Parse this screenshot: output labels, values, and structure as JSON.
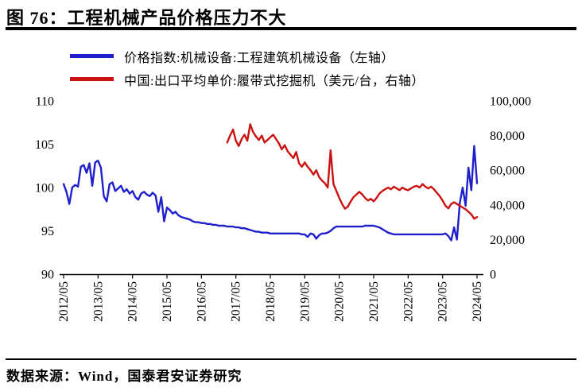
{
  "figure": {
    "title": "图 76：工程机械产品价格压力不大",
    "source": "数据来源：Wind，国泰君安证券研究"
  },
  "legend": [
    {
      "label": "价格指数:机械设备:工程建筑机械设备（左轴）",
      "color": "#1f1fcb"
    },
    {
      "label": "中国:出口平均单价:履带式挖掘机（美元/台，右轴）",
      "color": "#cc1111"
    }
  ],
  "chart_data": {
    "type": "line",
    "title": "工程机械产品价格压力不大",
    "x_frequency": "monthly",
    "x_start": "2012/05",
    "x_end": "2024/05",
    "x_tick_labels": [
      "2012/05",
      "2013/05",
      "2014/05",
      "2015/05",
      "2016/05",
      "2017/05",
      "2018/05",
      "2019/05",
      "2020/05",
      "2021/05",
      "2022/05",
      "2023/05",
      "2024/05"
    ],
    "left_axis": {
      "min": 90,
      "max": 110,
      "ticks": [
        110,
        105,
        100,
        95,
        90
      ]
    },
    "right_axis": {
      "min": 0,
      "max": 100000,
      "tick_labels": [
        "100,000",
        "80,000",
        "60,000",
        "40,000",
        "20,000",
        "0"
      ]
    },
    "grid": false,
    "legend_position": "top-left",
    "series": [
      {
        "id": "price-index",
        "name": "价格指数:机械设备:工程建筑机械设备（左轴）",
        "axis": "left",
        "color": "#1f1fcb",
        "start_index": 0,
        "values": [
          100.4,
          99.5,
          98.1,
          100.0,
          100.3,
          100.1,
          102.4,
          102.6,
          101.7,
          102.8,
          100.2,
          102.9,
          103.1,
          102.3,
          99.0,
          98.4,
          100.4,
          100.6,
          99.6,
          99.9,
          100.2,
          99.5,
          99.8,
          99.3,
          99.6,
          98.9,
          98.6,
          99.3,
          99.5,
          99.2,
          99.0,
          99.4,
          99.1,
          97.2,
          98.9,
          96.1,
          97.7,
          97.4,
          97.0,
          97.2,
          96.8,
          96.6,
          96.5,
          96.4,
          96.3,
          96.1,
          96.0,
          96.0,
          95.9,
          95.9,
          95.8,
          95.8,
          95.7,
          95.7,
          95.6,
          95.6,
          95.6,
          95.5,
          95.5,
          95.5,
          95.4,
          95.4,
          95.3,
          95.3,
          95.2,
          95.1,
          95.0,
          94.9,
          94.9,
          94.8,
          94.8,
          94.8,
          94.7,
          94.7,
          94.7,
          94.7,
          94.7,
          94.7,
          94.7,
          94.7,
          94.7,
          94.7,
          94.7,
          94.6,
          94.6,
          94.3,
          94.7,
          94.6,
          94.1,
          94.5,
          94.7,
          94.7,
          94.8,
          95.0,
          95.3,
          95.5,
          95.5,
          95.5,
          95.5,
          95.5,
          95.5,
          95.5,
          95.5,
          95.5,
          95.5,
          95.6,
          95.6,
          95.6,
          95.6,
          95.5,
          95.4,
          95.2,
          95.0,
          94.8,
          94.7,
          94.6,
          94.6,
          94.6,
          94.6,
          94.6,
          94.6,
          94.6,
          94.6,
          94.6,
          94.6,
          94.6,
          94.6,
          94.6,
          94.6,
          94.6,
          94.6,
          94.6,
          94.6,
          94.7,
          94.4,
          93.9,
          95.4,
          94.0,
          98.2,
          100.0,
          97.9,
          102.3,
          99.7,
          104.8,
          100.5
        ]
      },
      {
        "id": "export-unit-price",
        "name": "中国:出口平均单价:履带式挖掘机（美元/台，右轴）",
        "axis": "right",
        "color": "#cc1111",
        "start_index": 57,
        "values": [
          76000,
          80000,
          83500,
          77000,
          74000,
          78000,
          80500,
          77000,
          86500,
          82000,
          79500,
          77500,
          80000,
          76000,
          77500,
          79000,
          80500,
          78000,
          75500,
          72000,
          74500,
          71000,
          69000,
          67000,
          70500,
          64000,
          62000,
          64500,
          62000,
          60000,
          57500,
          60000,
          56000,
          54000,
          52500,
          50000,
          71500,
          52000,
          48000,
          44000,
          40500,
          37800,
          39000,
          42000,
          44500,
          46000,
          47500,
          46000,
          44000,
          42500,
          43500,
          42000,
          44000,
          46500,
          48000,
          49000,
          50000,
          49000,
          50500,
          49500,
          48500,
          50000,
          49000,
          48500,
          49500,
          50500,
          51000,
          50000,
          52000,
          50500,
          49500,
          50500,
          49000,
          47000,
          45000,
          42500,
          39500,
          38000,
          40500,
          41500,
          40500,
          39500,
          38500,
          37500,
          36000,
          34500,
          32000,
          33000
        ]
      }
    ]
  }
}
